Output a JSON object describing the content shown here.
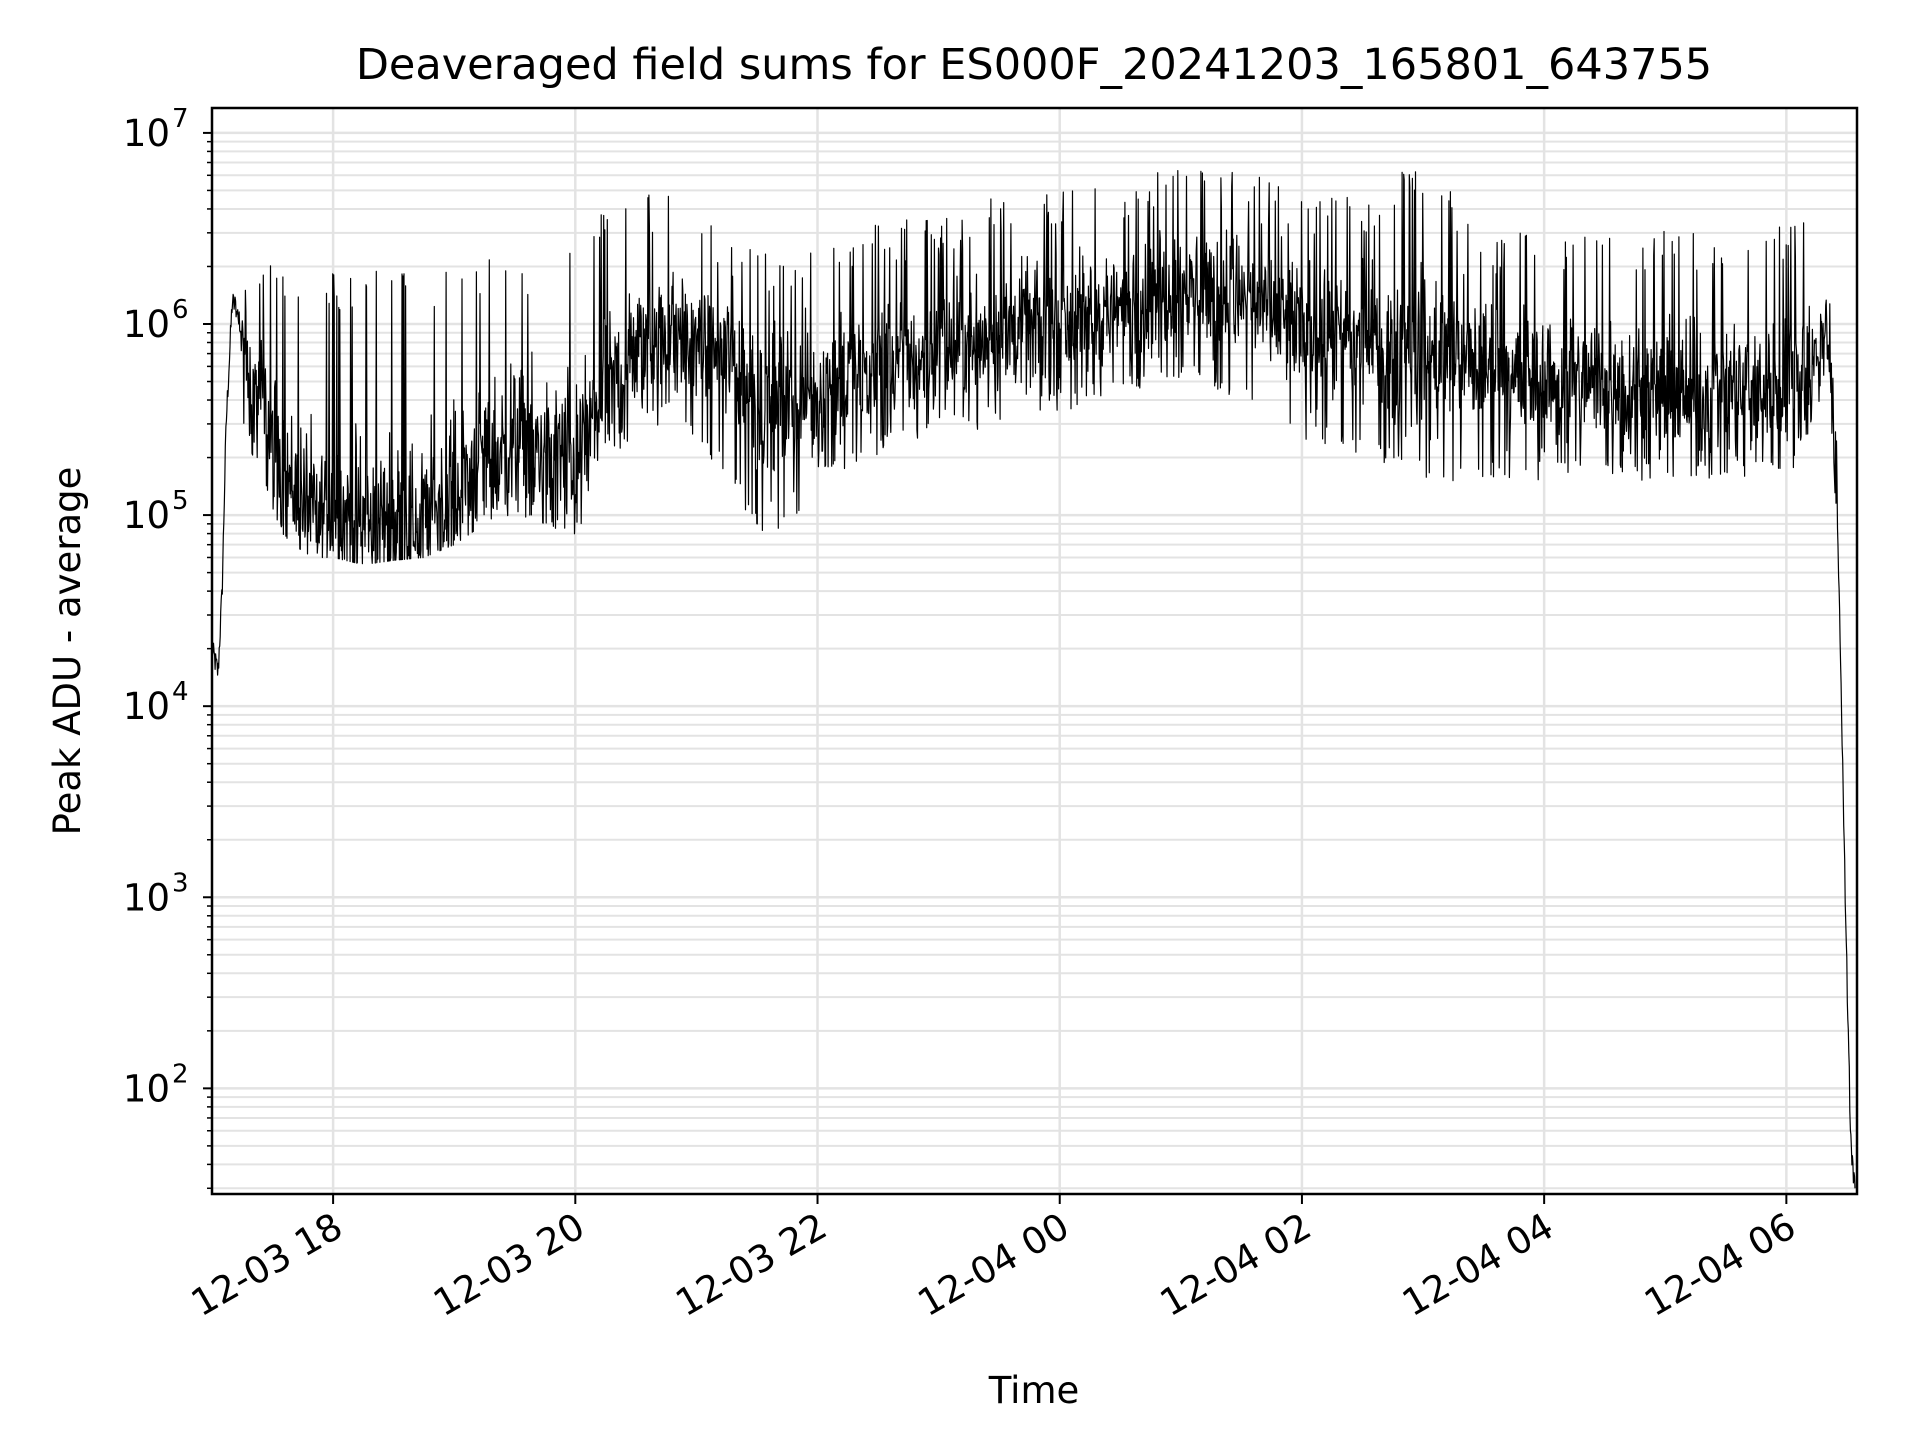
{
  "chart_data": {
    "type": "line",
    "title": "Deaveraged field sums for ES000F_20241203_165801_643755",
    "xlabel": "Time",
    "ylabel": "Peak ADU - average",
    "yscale": "log",
    "ylim": [
      28,
      13500000
    ],
    "xlim": [
      "2024-12-03 17:00",
      "2024-12-04 06:35"
    ],
    "grid": true,
    "line_color": "#000000",
    "grid_color": "#e3e3e3",
    "x_ticks": [
      {
        "time": "2024-12-03 18:00",
        "label": "12-03 18"
      },
      {
        "time": "2024-12-03 20:00",
        "label": "12-03 20"
      },
      {
        "time": "2024-12-03 22:00",
        "label": "12-03 22"
      },
      {
        "time": "2024-12-04 00:00",
        "label": "12-04 00"
      },
      {
        "time": "2024-12-04 02:00",
        "label": "12-04 02"
      },
      {
        "time": "2024-12-04 04:00",
        "label": "12-04 04"
      },
      {
        "time": "2024-12-04 06:00",
        "label": "12-04 06"
      }
    ],
    "y_ticks": [
      {
        "value": 100,
        "base": "10",
        "exp": "2"
      },
      {
        "value": 1000,
        "base": "10",
        "exp": "3"
      },
      {
        "value": 10000,
        "base": "10",
        "exp": "4"
      },
      {
        "value": 100000,
        "base": "10",
        "exp": "5"
      },
      {
        "value": 1000000,
        "base": "10",
        "exp": "6"
      },
      {
        "value": 10000000,
        "base": "10",
        "exp": "7"
      }
    ],
    "series": [
      {
        "x": [
          "2024-12-03 17:00",
          "2024-12-03 17:03",
          "2024-12-03 17:05",
          "2024-12-03 17:07",
          "2024-12-03 17:10",
          "2024-12-03 17:13",
          "2024-12-03 17:15",
          "2024-12-03 17:20",
          "2024-12-03 17:25",
          "2024-12-03 17:30",
          "2024-12-03 17:35",
          "2024-12-03 17:40",
          "2024-12-03 17:45",
          "2024-12-03 17:50",
          "2024-12-03 17:55",
          "2024-12-03 18:00",
          "2024-12-03 18:15",
          "2024-12-03 18:30",
          "2024-12-03 18:45",
          "2024-12-03 19:00",
          "2024-12-03 19:15",
          "2024-12-03 19:30",
          "2024-12-03 19:45",
          "2024-12-03 20:00",
          "2024-12-03 20:15",
          "2024-12-03 20:30",
          "2024-12-03 20:45",
          "2024-12-03 21:00",
          "2024-12-03 21:15",
          "2024-12-03 21:30",
          "2024-12-03 21:45",
          "2024-12-03 22:00",
          "2024-12-03 22:30",
          "2024-12-03 23:00",
          "2024-12-03 23:30",
          "2024-12-04 00:00",
          "2024-12-04 00:30",
          "2024-12-04 01:00",
          "2024-12-04 01:30",
          "2024-12-04 02:00",
          "2024-12-04 02:30",
          "2024-12-04 03:00",
          "2024-12-04 03:30",
          "2024-12-04 04:00",
          "2024-12-04 04:30",
          "2024-12-04 05:00",
          "2024-12-04 05:30",
          "2024-12-04 06:00",
          "2024-12-04 06:15",
          "2024-12-04 06:20",
          "2024-12-04 06:25",
          "2024-12-04 06:28",
          "2024-12-04 06:30",
          "2024-12-04 06:32",
          "2024-12-04 06:34"
        ],
        "median": [
          20000,
          15000,
          40000,
          300000,
          1300000,
          1200000,
          700000,
          500000,
          350000,
          250000,
          180000,
          140000,
          120000,
          110000,
          105000,
          100000,
          95000,
          90000,
          100000,
          140000,
          200000,
          260000,
          220000,
          200000,
          400000,
          700000,
          900000,
          800000,
          700000,
          400000,
          350000,
          450000,
          600000,
          700000,
          900000,
          1000000,
          1200000,
          1600000,
          1400000,
          900000,
          800000,
          700000,
          600000,
          500000,
          500000,
          400000,
          450000,
          450000,
          700000,
          1000000,
          150000,
          4000,
          400,
          50,
          30
        ],
        "low": [
          15000,
          12000,
          30000,
          200000,
          1000000,
          900000,
          300000,
          200000,
          150000,
          100000,
          80000,
          70000,
          65000,
          60000,
          60000,
          60000,
          55000,
          58000,
          60000,
          70000,
          90000,
          100000,
          90000,
          70000,
          150000,
          250000,
          300000,
          250000,
          150000,
          80000,
          80000,
          150000,
          200000,
          250000,
          300000,
          350000,
          400000,
          500000,
          400000,
          250000,
          200000,
          150000,
          150000,
          150000,
          150000,
          150000,
          150000,
          150000,
          300000,
          600000,
          80000,
          2000,
          200,
          40,
          28
        ],
        "high": [
          25000,
          20000,
          60000,
          800000,
          1700000,
          1700000,
          2000000,
          2200000,
          2100000,
          2000000,
          2000000,
          1900000,
          1800000,
          1900000,
          1800000,
          1900000,
          1900000,
          2000000,
          2000000,
          2100000,
          2300000,
          2200000,
          2400000,
          2500000,
          4500000,
          5200000,
          4800000,
          4500000,
          3000000,
          2500000,
          2300000,
          2800000,
          3500000,
          3500000,
          4700000,
          5000000,
          5500000,
          7000000,
          6500000,
          5000000,
          4500000,
          7500000,
          3000000,
          3000000,
          3000000,
          3100000,
          3000000,
          3500000,
          4000000,
          1700000,
          1000000,
          15000,
          1500,
          150,
          40
        ]
      }
    ]
  }
}
